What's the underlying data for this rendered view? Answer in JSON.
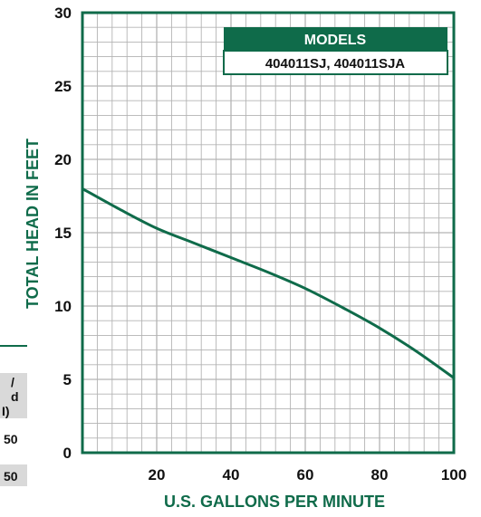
{
  "colors": {
    "accent": "#0f6b4a",
    "grid": "#b3b3b3",
    "background": "#ffffff"
  },
  "chart_data": {
    "type": "line",
    "title": "",
    "xlabel": "U.S. GALLONS PER MINUTE",
    "ylabel": "TOTAL HEAD IN FEET",
    "xlim": [
      0,
      100
    ],
    "ylim": [
      0,
      30
    ],
    "grid": true,
    "x_ticks": [
      "20",
      "40",
      "60",
      "80",
      "100"
    ],
    "y_ticks": [
      "0",
      "5",
      "10",
      "15",
      "20",
      "25",
      "30"
    ],
    "legend": {
      "title": "MODELS",
      "entries": [
        "404011SJ, 404011SJA"
      ],
      "placement": "top-right"
    },
    "series": [
      {
        "x": [
          0,
          10,
          20,
          30,
          40,
          50,
          60,
          70,
          80,
          90,
          100
        ],
        "y": [
          18,
          16.6,
          15.3,
          14.3,
          13.3,
          12.3,
          11.2,
          9.9,
          8.5,
          6.9,
          5.1
        ]
      }
    ]
  },
  "left_fragment": {
    "header_lines": [
      "/",
      "d",
      "I)"
    ],
    "rows": [
      "50",
      "50"
    ]
  }
}
